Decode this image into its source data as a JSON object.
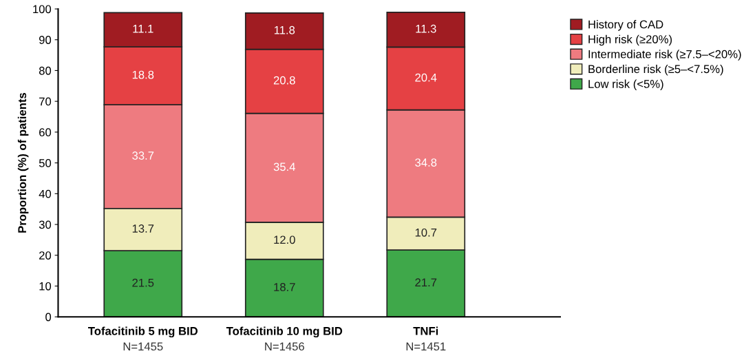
{
  "chart_data": {
    "type": "bar",
    "stacked": true,
    "ylabel": "Proportion (%) of patients",
    "categories": [
      "Tofacitinib 5 mg BID\nN=1455",
      "Tofacitinib 10 mg BID\nN=1456",
      "TNFi\nN=1451"
    ],
    "series": [
      {
        "name": "Low risk (<5%)",
        "color": "#3fa84a",
        "values": [
          21.5,
          18.7,
          21.7
        ],
        "value_labels": [
          "21.5",
          "18.7",
          "21.7"
        ]
      },
      {
        "name": "Borderline risk (≥5–<7.5%)",
        "color": "#f0edbb",
        "values": [
          13.7,
          12.0,
          10.7
        ],
        "value_labels": [
          "13.7",
          "12.0",
          "10.7"
        ]
      },
      {
        "name": "Intermediate risk (≥7.5–<20%)",
        "color": "#ee7b80",
        "values": [
          33.7,
          35.4,
          34.8
        ],
        "value_labels": [
          "33.7",
          "35.4",
          "34.8"
        ]
      },
      {
        "name": "High risk (≥20%)",
        "color": "#e54144",
        "values": [
          18.8,
          20.8,
          20.4
        ],
        "value_labels": [
          "18.8",
          "20.8",
          "20.4"
        ]
      },
      {
        "name": "History of CAD",
        "color": "#a01c22",
        "values": [
          11.1,
          11.8,
          11.3
        ],
        "value_labels": [
          "11.1",
          "11.8",
          "11.3"
        ]
      }
    ],
    "ylim": [
      0,
      100
    ],
    "yticks": [
      0,
      10,
      20,
      30,
      40,
      50,
      60,
      70,
      80,
      90,
      100
    ],
    "legend": "top right",
    "grid": false
  }
}
